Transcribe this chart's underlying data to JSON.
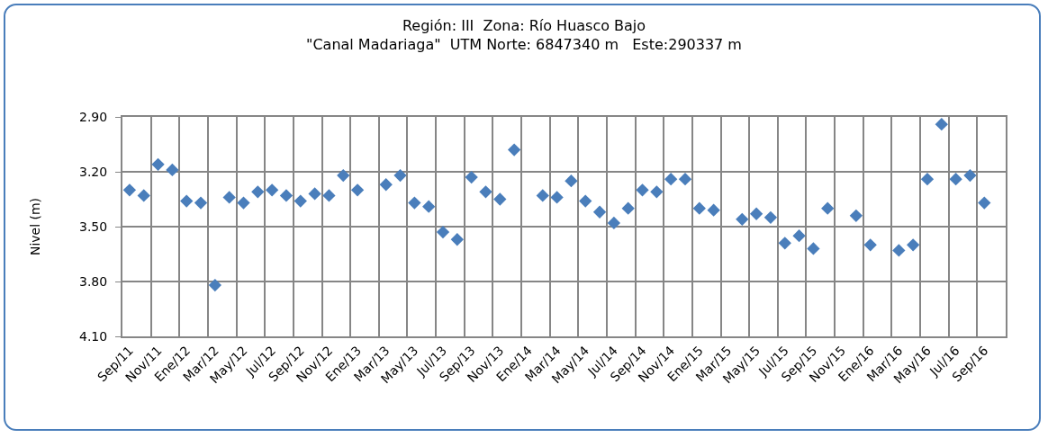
{
  "chart_data": {
    "type": "scatter",
    "title": "Región: III  Zona: Río Huasco Bajo",
    "subtitle": "\"Canal Madariaga\"  UTM Norte: 6847340 m   Este:290337 m",
    "ylabel": "Nivel (m)",
    "categories": [
      "Sep/11",
      null,
      "Nov/11",
      null,
      "Ene/12",
      null,
      "Mar/12",
      null,
      "May/12",
      null,
      "Jul/12",
      null,
      "Sep/12",
      null,
      "Nov/12",
      null,
      "Ene/13",
      null,
      "Mar/13",
      null,
      "May/13",
      null,
      "Jul/13",
      null,
      "Sep/13",
      null,
      "Nov/13",
      null,
      "Ene/14",
      null,
      "Mar/14",
      null,
      "May/14",
      null,
      "Jul/14",
      null,
      "Sep/14",
      null,
      "Nov/14",
      null,
      "Ene/15",
      null,
      "Mar/15",
      null,
      "May/15",
      null,
      "Jul/15",
      null,
      "Sep/15",
      null,
      "Nov/15",
      null,
      "Ene/16",
      null,
      "Mar/16",
      null,
      "May/16",
      null,
      "Jul/16",
      null,
      "Sep/16",
      null
    ],
    "series": [
      {
        "color": "#4a7ebb",
        "values": [
          3.3,
          3.33,
          3.16,
          3.19,
          3.36,
          3.37,
          3.82,
          3.34,
          3.37,
          3.31,
          3.3,
          3.33,
          3.36,
          3.32,
          3.33,
          3.22,
          3.3,
          null,
          3.27,
          3.22,
          3.37,
          3.39,
          3.53,
          3.57,
          3.23,
          3.31,
          3.35,
          3.08,
          null,
          3.33,
          3.34,
          3.25,
          3.36,
          3.42,
          3.48,
          3.4,
          3.3,
          3.31,
          3.24,
          3.24,
          3.4,
          3.41,
          null,
          3.46,
          3.43,
          3.45,
          3.59,
          3.55,
          3.62,
          3.4,
          null,
          3.44,
          3.6,
          null,
          3.63,
          3.6,
          3.24,
          2.94,
          3.24,
          3.22,
          3.37,
          null
        ]
      }
    ],
    "ylim": [
      4.1,
      2.9
    ],
    "yticks": [
      {
        "value": 2.9,
        "label": "2.90"
      },
      {
        "value": 3.2,
        "label": "3.20"
      },
      {
        "value": 3.5,
        "label": "3.50"
      },
      {
        "value": 3.8,
        "label": "3.80"
      },
      {
        "value": 4.1,
        "label": "4.10"
      }
    ],
    "grid": true,
    "marker": "diamond"
  }
}
